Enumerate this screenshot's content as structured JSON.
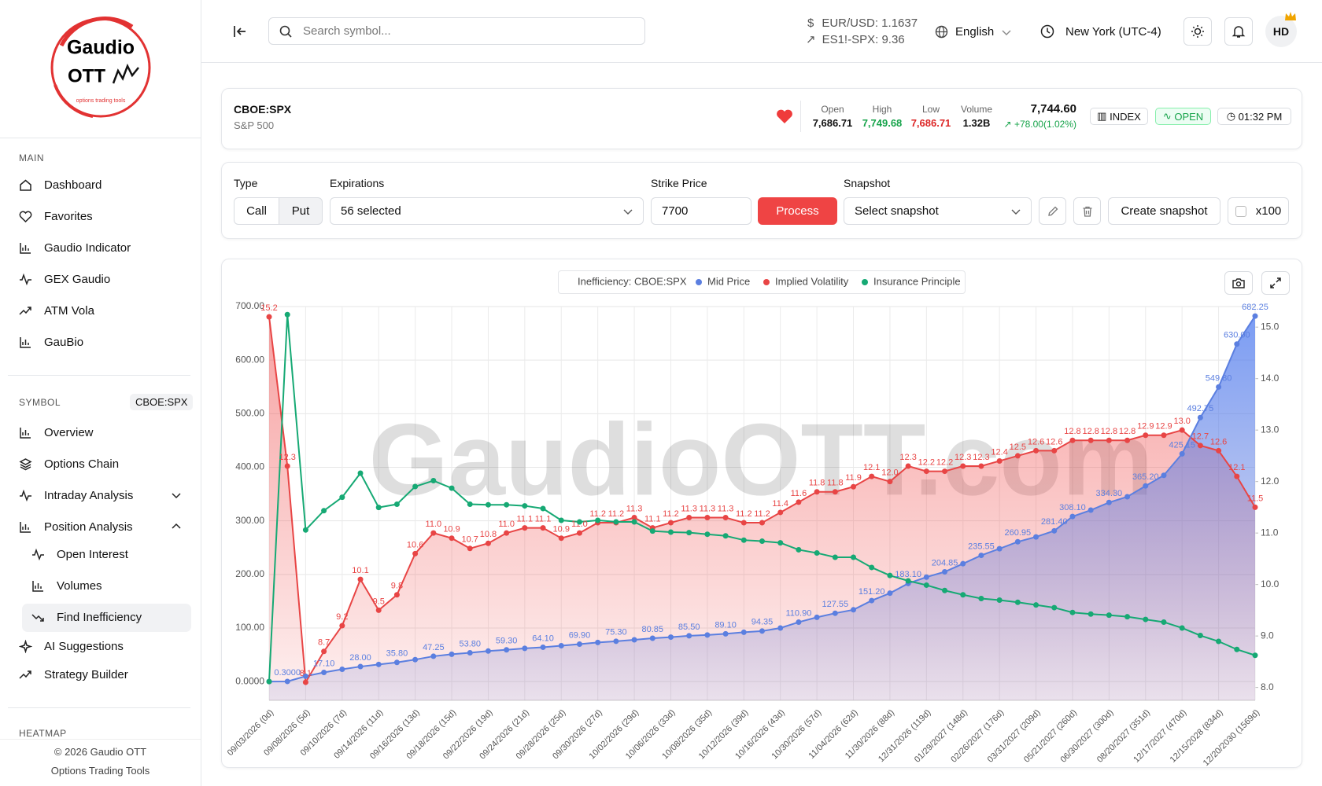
{
  "sidebar": {
    "logo_line1": "Gaudio",
    "logo_line2": "OTT",
    "logo_tagline": "options trading tools",
    "main_heading": "MAIN",
    "main_items": [
      "Dashboard",
      "Favorites",
      "Gaudio Indicator",
      "GEX Gaudio",
      "ATM Vola",
      "GauBio"
    ],
    "symbol_heading": "SYMBOL",
    "symbol_badge": "CBOE:SPX",
    "symbol_items": [
      "Overview",
      "Options Chain",
      "Intraday Analysis",
      "Position Analysis"
    ],
    "position_sub_items": [
      "Open Interest",
      "Volumes",
      "Find Inefficiency"
    ],
    "more_items": [
      "AI Suggestions",
      "Strategy Builder"
    ],
    "heatmap_heading": "HEATMAP",
    "footer_copyright": "© 2026 Gaudio OTT",
    "footer_tagline": "Options Trading Tools"
  },
  "header": {
    "search_placeholder": "Search symbol...",
    "eurusd": "EUR/USD: 1.1637",
    "es_spx": "ES1!-SPX: 9.36",
    "language": "English",
    "timezone": "New York (UTC-4)",
    "avatar": "HD"
  },
  "ticker": {
    "symbol": "CBOE:SPX",
    "name": "S&P 500",
    "open_label": "Open",
    "open": "7,686.71",
    "high_label": "High",
    "high": "7,749.68",
    "low_label": "Low",
    "low": "7,686.71",
    "volume_label": "Volume",
    "volume": "1.32B",
    "price": "7,744.60",
    "change": "+78.00(1.02%)",
    "badge_type": "INDEX",
    "badge_status": "OPEN",
    "time": "01:32 PM"
  },
  "controls": {
    "type_label": "Type",
    "type_options": [
      "Call",
      "Put"
    ],
    "expirations_label": "Expirations",
    "expirations_value": "56 selected",
    "strike_label": "Strike Price",
    "strike_value": "7700",
    "process_button": "Process",
    "snapshot_label": "Snapshot",
    "snapshot_value": "Select snapshot",
    "create_snapshot": "Create snapshot",
    "multiplier": "x100"
  },
  "chart_data": {
    "type": "line",
    "title": "Inefficiency: CBOE:SPX",
    "watermark": "GaudioOTT.com",
    "legend": "top",
    "categories": [
      "09/03/2026 (0d)",
      null,
      "09/08/2026 (5d)",
      null,
      "09/10/2026 (7d)",
      null,
      "09/14/2026 (11d)",
      null,
      "09/16/2026 (13d)",
      null,
      "09/18/2026 (15d)",
      null,
      "09/22/2026 (19d)",
      null,
      "09/24/2026 (21d)",
      null,
      "09/28/2026 (25d)",
      null,
      "09/30/2026 (27d)",
      null,
      "10/02/2026 (29d)",
      null,
      "10/06/2026 (33d)",
      null,
      "10/08/2026 (35d)",
      null,
      "10/12/2026 (39d)",
      null,
      "10/16/2026 (43d)",
      null,
      "10/30/2026 (57d)",
      null,
      "11/04/2026 (62d)",
      null,
      "11/30/2026 (88d)",
      null,
      "12/31/2026 (119d)",
      null,
      "01/29/2027 (148d)",
      null,
      "02/26/2027 (176d)",
      null,
      "03/31/2027 (209d)",
      null,
      "05/21/2027 (260d)",
      null,
      "06/30/2027 (300d)",
      null,
      "08/20/2027 (351d)",
      null,
      "12/17/2027 (470d)",
      null,
      "12/15/2028 (834d)",
      null,
      "12/20/2030 (1569d)"
    ],
    "series": [
      {
        "name": "Mid Price",
        "color": "#5b7fe0",
        "axis": "y",
        "values": [
          0.1,
          0.3,
          10,
          17.1,
          23,
          28,
          32,
          35.8,
          41,
          47.25,
          51,
          53.8,
          57,
          59.3,
          62,
          64.1,
          67,
          69.9,
          73,
          75.3,
          78,
          80.85,
          83,
          85.5,
          87,
          89.1,
          92,
          94.35,
          100,
          110.9,
          120,
          127.55,
          134,
          151.2,
          165,
          183.1,
          195,
          204.85,
          220,
          235.55,
          248,
          260.95,
          270,
          281.4,
          308.1,
          320,
          334.3,
          345,
          365.2,
          385,
          425.15,
          492.75,
          549.8,
          630,
          682.25
        ],
        "value_labels": [
          null,
          "0.3000",
          null,
          "17.10",
          null,
          "28.00",
          null,
          "35.80",
          null,
          "47.25",
          null,
          "53.80",
          null,
          "59.30",
          null,
          "64.10",
          null,
          "69.90",
          null,
          "75.30",
          null,
          "80.85",
          null,
          "85.50",
          null,
          "89.10",
          null,
          "94.35",
          null,
          "110.90",
          null,
          "127.55",
          null,
          "151.20",
          null,
          "183.10",
          null,
          "204.85",
          null,
          "235.55",
          null,
          "260.95",
          null,
          "281.40",
          "308.10",
          null,
          "334.30",
          null,
          "365.20",
          null,
          "425.15",
          "492.75",
          "549.80",
          "630.00",
          "682.25"
        ]
      },
      {
        "name": "Implied Volatility",
        "color": "#e84545",
        "axis": "y2",
        "values": [
          15.2,
          12.3,
          8.1,
          8.7,
          9.2,
          10.1,
          9.5,
          9.8,
          10.6,
          11,
          10.9,
          10.7,
          10.8,
          11,
          11.1,
          11.1,
          10.9,
          11,
          11.2,
          11.2,
          11.3,
          11.1,
          11.2,
          11.3,
          11.3,
          11.3,
          11.2,
          11.2,
          11.4,
          11.6,
          11.8,
          11.8,
          11.9,
          12.1,
          12,
          12.3,
          12.2,
          12.2,
          12.3,
          12.3,
          12.4,
          12.5,
          12.6,
          12.6,
          12.8,
          12.8,
          12.8,
          12.8,
          12.9,
          12.9,
          13,
          12.7,
          12.6,
          12.1,
          11.5
        ],
        "value_labels": [
          "15.2",
          "12.3",
          "8.1",
          "8.7",
          "9.2",
          "10.1",
          "9.5",
          "9.8",
          "10.6",
          "11.0",
          "10.9",
          "10.7",
          "10.8",
          "11.0",
          "11.1",
          "11.1",
          "10.9",
          "11.0",
          "11.2",
          "11.2",
          "11.3",
          "11.1",
          "11.2",
          "11.3",
          "11.3",
          "11.3",
          "11.2",
          "11.2",
          "11.4",
          "11.6",
          "11.8",
          "11.8",
          "11.9",
          "12.1",
          "12.0",
          "12.3",
          "12.2",
          "12.2",
          "12.3",
          "12.3",
          "12.4",
          "12.5",
          "12.6",
          "12.6",
          "12.8",
          "12.8",
          "12.8",
          "12.8",
          "12.9",
          "12.9",
          "13.0",
          "12.7",
          "12.6",
          "12.1",
          "11.5"
        ]
      },
      {
        "name": "Insurance Principle",
        "color": "#16a974",
        "axis": "y",
        "values": [
          0,
          685,
          283,
          319,
          344,
          389,
          325,
          331,
          364,
          375,
          361,
          331,
          330,
          330,
          328,
          323,
          301,
          298,
          301,
          298,
          298,
          281,
          279,
          278,
          275,
          272,
          264,
          262,
          259,
          246,
          240,
          232,
          232,
          213,
          198,
          188,
          180,
          170,
          162,
          155,
          152,
          148,
          143,
          138,
          129,
          126,
          124,
          121,
          116,
          111,
          100,
          86,
          75,
          60,
          49
        ]
      }
    ],
    "ylim": [
      -35,
      700
    ],
    "yticks": [
      {
        "value": 0,
        "label": "0.0000"
      },
      {
        "value": 100,
        "label": "100.00"
      },
      {
        "value": 200,
        "label": "200.00"
      },
      {
        "value": 300,
        "label": "300.00"
      },
      {
        "value": 400,
        "label": "400.00"
      },
      {
        "value": 500,
        "label": "500.00"
      },
      {
        "value": 600,
        "label": "600.00"
      },
      {
        "value": 700,
        "label": "700.00"
      }
    ],
    "y2lim": [
      7.75,
      15.4
    ],
    "y2ticks": [
      {
        "value": 8,
        "label": "8.0"
      },
      {
        "value": 9,
        "label": "9.0"
      },
      {
        "value": 10,
        "label": "10.0"
      },
      {
        "value": 11,
        "label": "11.0"
      },
      {
        "value": 12,
        "label": "12.0"
      },
      {
        "value": 13,
        "label": "13.0"
      },
      {
        "value": 14,
        "label": "14.0"
      },
      {
        "value": 15,
        "label": "15.0"
      }
    ],
    "grid": true
  }
}
